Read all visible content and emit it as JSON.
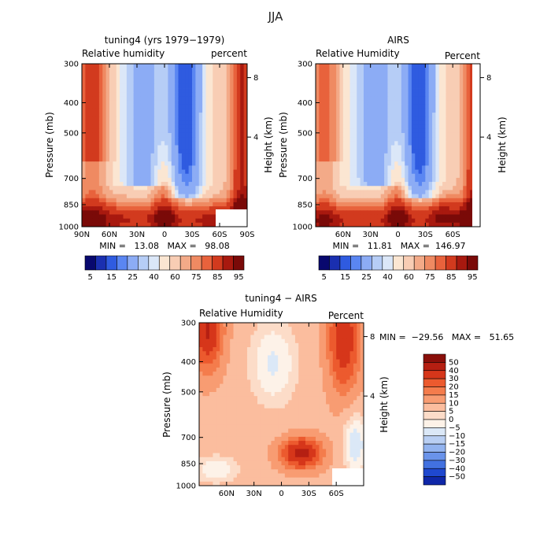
{
  "figure": {
    "title": "JJA"
  },
  "chart_data": [
    {
      "type": "heatmap",
      "title": "tuning4 (yrs 1979−1979)",
      "variable": "Relative humidity",
      "units": "percent",
      "ylabel": "Pressure (mb)",
      "ylabel_right": "Height (km)",
      "y_ticks": [
        "300",
        "400",
        "500",
        "700",
        "850",
        "1000"
      ],
      "y_ticks_right": [
        "8",
        "4"
      ],
      "x_ticks": [
        "90N",
        "60N",
        "30N",
        "0",
        "30S",
        "60S",
        "90S"
      ],
      "stats": "MIN =   13.08   MAX =   98.08",
      "colorbar_labels": [
        "5",
        "15",
        "25",
        "40",
        "60",
        "75",
        "85",
        "95"
      ],
      "colorbar_colors": [
        "#08086e",
        "#1a2fb0",
        "#2f5be0",
        "#5a86f2",
        "#8cacf5",
        "#b6cdf6",
        "#dbe7f8",
        "#fbe6d2",
        "#f8cdb4",
        "#f3aa88",
        "#ef8a62",
        "#e8623c",
        "#d23a1e",
        "#a8190f",
        "#7a0a08"
      ],
      "field": "rh"
    },
    {
      "type": "heatmap",
      "title": "AIRS",
      "variable": "Relative Humidity",
      "units": "Percent",
      "ylabel": "Pressure (mb)",
      "ylabel_right": "Height (km)",
      "y_ticks": [
        "300",
        "400",
        "500",
        "700",
        "850",
        "1000"
      ],
      "y_ticks_right": [
        "8",
        "4"
      ],
      "x_ticks": [
        "60N",
        "30N",
        "0",
        "30S",
        "60S"
      ],
      "stats": "MIN =   11.81   MAX =  146.97",
      "colorbar_labels": [
        "5",
        "15",
        "25",
        "40",
        "60",
        "75",
        "85",
        "95"
      ],
      "colorbar_colors": [
        "#08086e",
        "#1a2fb0",
        "#2f5be0",
        "#5a86f2",
        "#8cacf5",
        "#b6cdf6",
        "#dbe7f8",
        "#fbe6d2",
        "#f8cdb4",
        "#f3aa88",
        "#ef8a62",
        "#e8623c",
        "#d23a1e",
        "#a8190f",
        "#7a0a08"
      ],
      "field": "rh"
    },
    {
      "type": "heatmap",
      "title": "tuning4 − AIRS",
      "variable": "Relative Humidity",
      "units": "Percent",
      "ylabel": "Pressure (mb)",
      "ylabel_right": "Height (km)",
      "y_ticks": [
        "300",
        "400",
        "500",
        "700",
        "850",
        "1000"
      ],
      "y_ticks_right": [
        "8",
        "4"
      ],
      "x_ticks": [
        "60N",
        "30N",
        "0",
        "30S",
        "60S"
      ],
      "stats": "MIN =  −29.56   MAX =   51.65",
      "colorbar_labels": [
        "50",
        "40",
        "30",
        "20",
        "15",
        "10",
        "5",
        "0",
        "−5",
        "−10",
        "−15",
        "−20",
        "−30",
        "−40",
        "−50"
      ],
      "colorbar_colors": [
        "#8a0f0a",
        "#b51f12",
        "#d6361a",
        "#ec5a2e",
        "#f47c4c",
        "#f89c72",
        "#fbbd9e",
        "#fcdcc8",
        "#fdf2e8",
        "#dbe8f7",
        "#b9cff3",
        "#92b3ef",
        "#6a93ea",
        "#4271e0",
        "#1f48cf",
        "#0f27a8"
      ],
      "field": "diff"
    }
  ]
}
